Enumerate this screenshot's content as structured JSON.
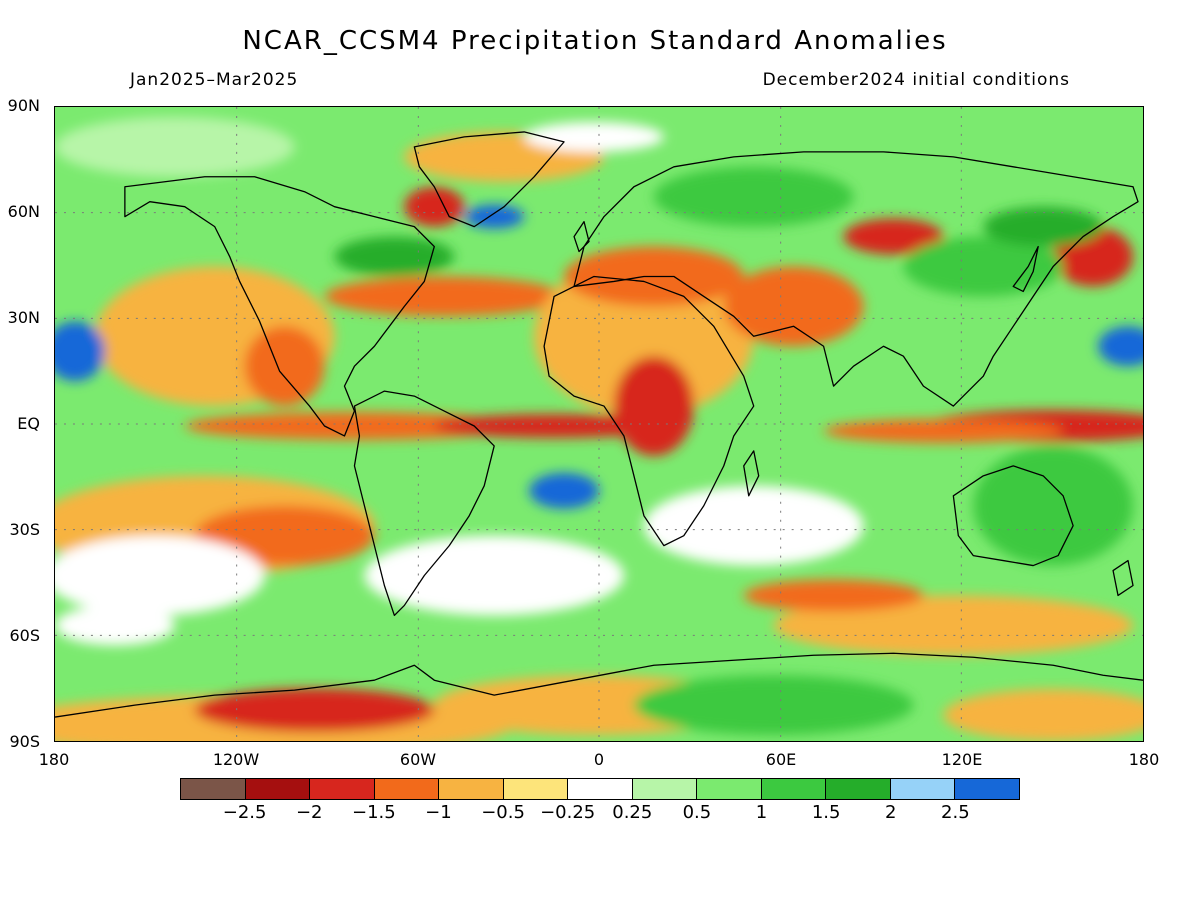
{
  "title": "NCAR_CCSM4 Precipitation Standard Anomalies",
  "period": "Jan2025–Mar2025",
  "initial_conditions": "December2024 initial conditions",
  "lat_labels": [
    "90N",
    "60N",
    "30N",
    "EQ",
    "30S",
    "60S",
    "90S"
  ],
  "lon_labels": [
    "180",
    "120W",
    "60W",
    "0",
    "60E",
    "120E",
    "180"
  ],
  "colorbar": {
    "colors": [
      "#7b5548",
      "#a50f0f",
      "#d7261e",
      "#f26a1b",
      "#f7b341",
      "#fde47a",
      "#ffffff",
      "#b7f5a8",
      "#7bea6f",
      "#3cc940",
      "#25ad2a",
      "#96d2f8",
      "#1668d8"
    ],
    "labels": [
      "−2.5",
      "−2",
      "−1.5",
      "−1",
      "−0.5",
      "−0.25",
      "0.25",
      "0.5",
      "1",
      "1.5",
      "2",
      "2.5"
    ]
  }
}
